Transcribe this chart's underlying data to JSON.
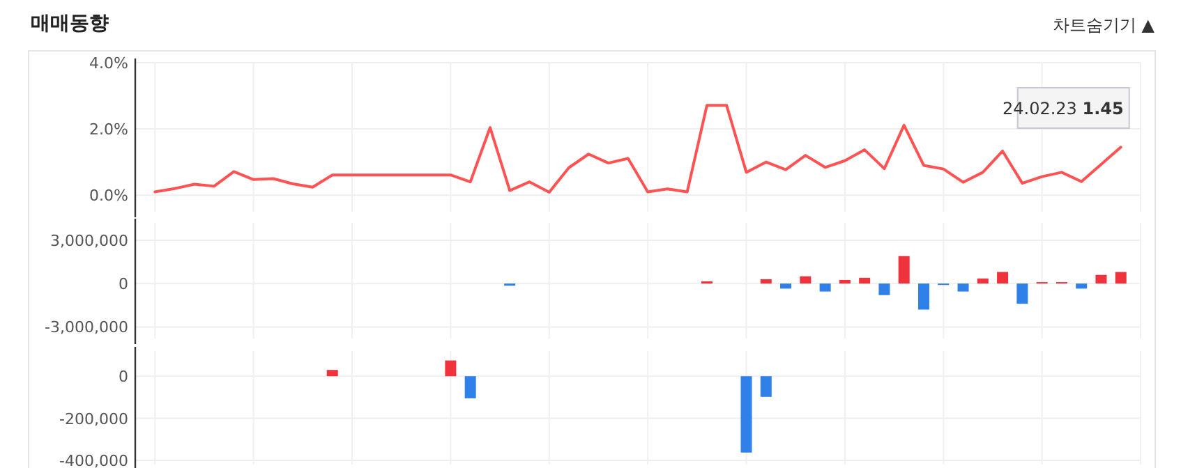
{
  "chart_data": [
    {
      "type": "line",
      "title": "매매동향",
      "annotations": [
        "차트숨기기 ▲",
        "24.02.23 1.45"
      ],
      "categories": [
        null,
        null,
        null,
        null,
        null,
        null,
        null,
        null,
        null,
        null,
        null,
        null,
        null,
        null,
        null,
        null,
        null,
        null,
        null,
        null,
        null,
        null,
        null,
        null,
        null,
        null,
        null,
        null,
        null,
        null,
        null,
        null,
        null,
        null,
        null,
        null,
        null,
        null,
        null,
        null,
        null,
        null,
        null,
        null,
        null,
        null,
        null,
        null,
        null,
        null
      ],
      "series": [
        {
          "color": "#ff5252",
          "values": [
            0.1,
            0.2,
            0.33,
            0.27,
            0.71,
            0.47,
            0.5,
            0.34,
            0.24,
            0.61,
            0.61,
            0.61,
            0.61,
            0.61,
            0.61,
            0.61,
            0.4,
            2.04,
            0.14,
            0.4,
            0.09,
            0.83,
            1.24,
            0.97,
            1.11,
            0.1,
            0.19,
            0.1,
            2.71,
            2.71,
            0.69,
            1.0,
            0.77,
            1.2,
            0.84,
            1.04,
            1.37,
            0.8,
            2.11,
            0.9,
            0.79,
            0.39,
            0.69,
            1.33,
            0.36,
            0.56,
            0.69,
            0.41,
            0.93,
            1.45
          ]
        }
      ],
      "ylim": [
        -0.5,
        4
      ],
      "yticks": [
        {
          "value": 0,
          "label": "0.0%"
        },
        {
          "value": 2,
          "label": "2.0%"
        },
        {
          "value": 4,
          "label": "4.0%"
        }
      ],
      "grid": true,
      "tick_labels": "y",
      "marker": "none",
      "line_style": "solid"
    },
    {
      "type": "bar",
      "categories": [
        null,
        null,
        null,
        null,
        null,
        null,
        null,
        null,
        null,
        null,
        null,
        null,
        null,
        null,
        null,
        null,
        null,
        null,
        null,
        null,
        null,
        null,
        null,
        null,
        null,
        null,
        null,
        null,
        null,
        null,
        null,
        null,
        null,
        null,
        null,
        null,
        null,
        null,
        null,
        null,
        null,
        null,
        null,
        null,
        null,
        null,
        null,
        null,
        null,
        null
      ],
      "values": [
        null,
        null,
        null,
        null,
        null,
        null,
        null,
        null,
        null,
        null,
        null,
        null,
        null,
        null,
        null,
        null,
        null,
        null,
        -150000,
        null,
        null,
        null,
        null,
        null,
        null,
        null,
        null,
        null,
        150000,
        null,
        null,
        300000,
        -350000,
        500000,
        -550000,
        250000,
        400000,
        -800000,
        1900000,
        -1800000,
        -100000,
        -550000,
        350000,
        800000,
        -1400000,
        100000,
        100000,
        -350000,
        600000,
        800000
      ],
      "colors": [
        null,
        null,
        null,
        null,
        null,
        null,
        null,
        null,
        null,
        null,
        null,
        null,
        null,
        null,
        null,
        null,
        null,
        null,
        "#2f80e8",
        null,
        null,
        null,
        null,
        null,
        null,
        null,
        null,
        null,
        "#f0323c",
        null,
        null,
        "#f0323c",
        "#2f80e8",
        "#f0323c",
        "#2f80e8",
        "#f0323c",
        "#f0323c",
        "#2f80e8",
        "#f0323c",
        "#2f80e8",
        "#2f80e8",
        "#2f80e8",
        "#f0323c",
        "#f0323c",
        "#2f80e8",
        "#f0323c",
        "#f0323c",
        "#2f80e8",
        "#f0323c",
        "#f0323c"
      ],
      "ylim": [
        -3800000,
        4200000
      ],
      "yticks": [
        {
          "value": -3000000,
          "label": "-3,000,000"
        },
        {
          "value": 0,
          "label": "0"
        },
        {
          "value": 3000000,
          "label": "3,000,000"
        }
      ],
      "grid": true,
      "tick_labels": "y"
    },
    {
      "type": "bar",
      "categories": [
        null,
        null,
        null,
        null,
        null,
        null,
        null,
        null,
        null,
        null,
        null,
        null,
        null,
        null,
        null,
        null,
        null,
        null,
        null,
        null,
        null,
        null,
        null,
        null,
        null,
        null,
        null,
        null,
        null,
        null,
        null,
        null,
        null,
        null,
        null,
        null,
        null,
        null,
        null,
        null,
        null,
        null,
        null,
        null,
        null,
        null,
        null,
        null,
        null,
        null
      ],
      "values": [
        null,
        null,
        null,
        null,
        null,
        null,
        null,
        null,
        null,
        30000,
        null,
        null,
        null,
        null,
        null,
        75000,
        -105000,
        null,
        null,
        null,
        null,
        null,
        null,
        null,
        null,
        null,
        null,
        null,
        null,
        null,
        -363000,
        -98000,
        null,
        null,
        null,
        null,
        null,
        null,
        null,
        null,
        null,
        null,
        null,
        null,
        null,
        null,
        null,
        null,
        null,
        null
      ],
      "colors": [
        null,
        null,
        null,
        null,
        null,
        null,
        null,
        null,
        null,
        "#f0323c",
        null,
        null,
        null,
        null,
        null,
        "#f0323c",
        "#2f80e8",
        null,
        null,
        null,
        null,
        null,
        null,
        null,
        null,
        null,
        null,
        null,
        null,
        null,
        "#2f80e8",
        "#2f80e8",
        null,
        null,
        null,
        null,
        null,
        null,
        null,
        null,
        null,
        null,
        null,
        null,
        null,
        null,
        null,
        null,
        null,
        null
      ],
      "ylim": [
        -420000,
        120000
      ],
      "yticks": [
        {
          "value": -400000,
          "label": "-400,000"
        },
        {
          "value": -200000,
          "label": "-200,000"
        },
        {
          "value": 0,
          "label": "0"
        }
      ],
      "grid": true,
      "tick_labels": "y"
    }
  ]
}
